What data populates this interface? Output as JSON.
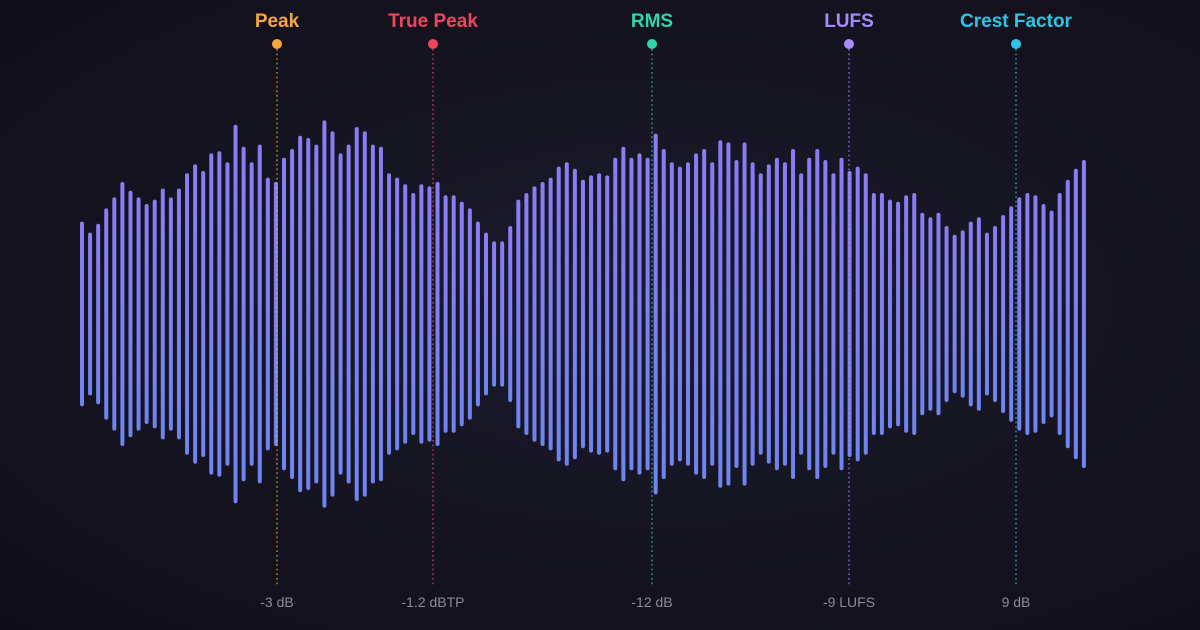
{
  "waveform": {
    "bar_color_top": "#8b7cf5",
    "bar_color_bottom": "#6f84f0",
    "amplitudes": [
      0.42,
      0.37,
      0.41,
      0.48,
      0.53,
      0.6,
      0.56,
      0.53,
      0.5,
      0.52,
      0.57,
      0.53,
      0.57,
      0.64,
      0.68,
      0.65,
      0.73,
      0.74,
      0.69,
      0.86,
      0.76,
      0.69,
      0.77,
      0.62,
      0.6,
      0.71,
      0.75,
      0.81,
      0.8,
      0.77,
      0.88,
      0.83,
      0.73,
      0.77,
      0.85,
      0.83,
      0.77,
      0.76,
      0.64,
      0.62,
      0.59,
      0.55,
      0.59,
      0.58,
      0.6,
      0.54,
      0.54,
      0.51,
      0.48,
      0.42,
      0.37,
      0.33,
      0.33,
      0.4,
      0.52,
      0.55,
      0.58,
      0.6,
      0.62,
      0.67,
      0.69,
      0.66,
      0.61,
      0.63,
      0.64,
      0.63,
      0.71,
      0.76,
      0.71,
      0.73,
      0.71,
      0.82,
      0.75,
      0.69,
      0.67,
      0.69,
      0.73,
      0.75,
      0.69,
      0.79,
      0.78,
      0.7,
      0.78,
      0.69,
      0.64,
      0.68,
      0.71,
      0.69,
      0.75,
      0.64,
      0.71,
      0.75,
      0.7,
      0.64,
      0.71,
      0.65,
      0.67,
      0.64,
      0.55,
      0.55,
      0.52,
      0.51,
      0.54,
      0.55,
      0.46,
      0.44,
      0.46,
      0.4,
      0.36,
      0.38,
      0.42,
      0.44,
      0.37,
      0.4,
      0.45,
      0.49,
      0.53,
      0.55,
      0.54,
      0.5,
      0.47,
      0.55,
      0.61,
      0.66,
      0.7
    ]
  },
  "markers": [
    {
      "title": "Peak",
      "value": "-3 dB",
      "color": "#f5a83a"
    },
    {
      "title": "True Peak",
      "value": "-1.2 dBTP",
      "color": "#f0455e"
    },
    {
      "title": "RMS",
      "value": "-12 dB",
      "color": "#2fd6a6"
    },
    {
      "title": "LUFS",
      "value": "-9 LUFS",
      "color": "#a78bfa"
    },
    {
      "title": "Crest Factor",
      "value": "9 dB",
      "color": "#29c6e6"
    }
  ]
}
